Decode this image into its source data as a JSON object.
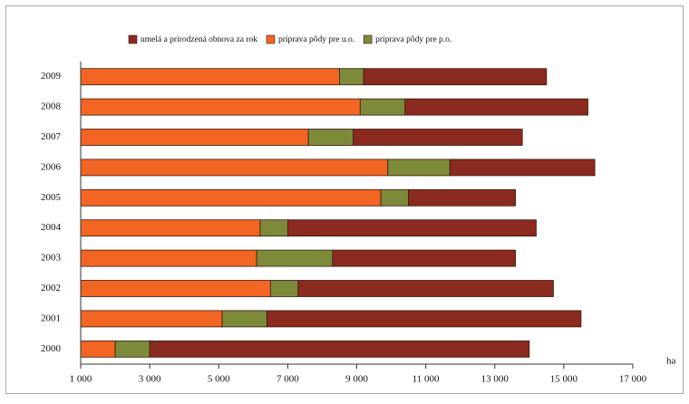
{
  "chart_data": {
    "type": "stacked-barh",
    "categories": [
      "2009",
      "2008",
      "2007",
      "2006",
      "2005",
      "2004",
      "2003",
      "2002",
      "2001",
      "2000"
    ],
    "series": [
      {
        "name": "príprava pôdy pre u.o.",
        "color": "#f26522",
        "values": [
          8500,
          9100,
          7600,
          9900,
          9700,
          6200,
          6100,
          6500,
          5100,
          2000
        ]
      },
      {
        "name": "príprava pôdy pre p.o.",
        "color": "#7d8a3a",
        "values": [
          700,
          1300,
          1300,
          1800,
          800,
          800,
          2200,
          800,
          1300,
          1000
        ]
      },
      {
        "name": "umelá a prirodzená obnova za rok",
        "color": "#8b2a1e",
        "values": [
          5300,
          5300,
          4900,
          4200,
          3100,
          7200,
          5300,
          7400,
          9100,
          11000
        ]
      }
    ],
    "legend_order": [
      2,
      0,
      1
    ],
    "x_label": "ha",
    "xlim": [
      1000,
      17000
    ],
    "xticks": [
      {
        "value": 1000,
        "label": "1 000"
      },
      {
        "value": 3000,
        "label": "3 000"
      },
      {
        "value": 5000,
        "label": "5 000"
      },
      {
        "value": 7000,
        "label": "7 000"
      },
      {
        "value": 9000,
        "label": "9 000"
      },
      {
        "value": 11000,
        "label": "11 000"
      },
      {
        "value": 13000,
        "label": "13 000"
      },
      {
        "value": 15000,
        "label": "15 000"
      },
      {
        "value": 17000,
        "label": "17 000"
      }
    ],
    "legend_position": "top"
  }
}
